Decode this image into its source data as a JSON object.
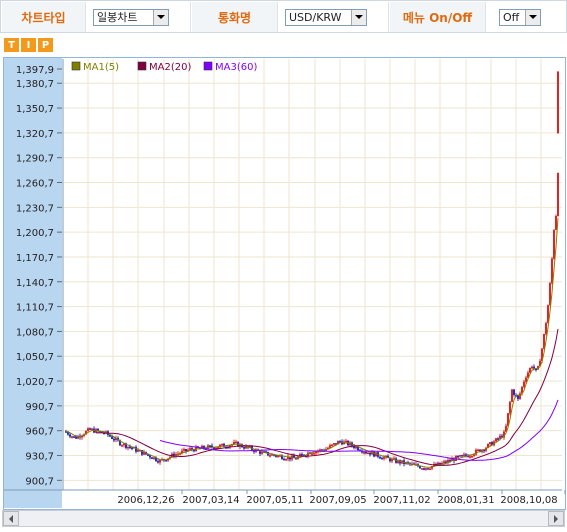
{
  "toolbar": {
    "chart_type_label": "차트타입",
    "chart_type_value": "일봉차트",
    "currency_label": "통화명",
    "currency_value": "USD/KRW",
    "menu_label": "메뉴 On/Off",
    "menu_value": "Off"
  },
  "tip": [
    "T",
    "I",
    "P"
  ],
  "chart_data": {
    "type": "candlestick",
    "legend": [
      {
        "name": "MA1(5)",
        "color": "#808000"
      },
      {
        "name": "MA2(20)",
        "color": "#800040"
      },
      {
        "name": "MA3(60)",
        "color": "#8000ff"
      }
    ],
    "y_ticks": [
      "1,397,9",
      "1,380,7",
      "1,350,7",
      "1,320,7",
      "1,290,7",
      "1,260,7",
      "1,230,7",
      "1,200,7",
      "1,170,7",
      "1,140,7",
      "1,110,7",
      "1,080,7",
      "1,050,7",
      "1,020,7",
      "990,7",
      "960,7",
      "930,7",
      "900,7"
    ],
    "y_tick_values": [
      1397.9,
      1380.7,
      1350.7,
      1320.7,
      1290.7,
      1260.7,
      1230.7,
      1200.7,
      1170.7,
      1140.7,
      1110.7,
      1080.7,
      1050.7,
      1020.7,
      990.7,
      960.7,
      930.7,
      900.7
    ],
    "x_ticks": [
      "2006,12,26",
      "2007,03,14",
      "2007,05,11",
      "2007,09,05",
      "2007,11,02",
      "2008,01,31",
      "2008,10,08"
    ],
    "ylim": [
      889,
      1410
    ],
    "grid": true,
    "legend_position": "top-left",
    "up_color": "#e82020",
    "down_color": "#1a2fd0"
  }
}
